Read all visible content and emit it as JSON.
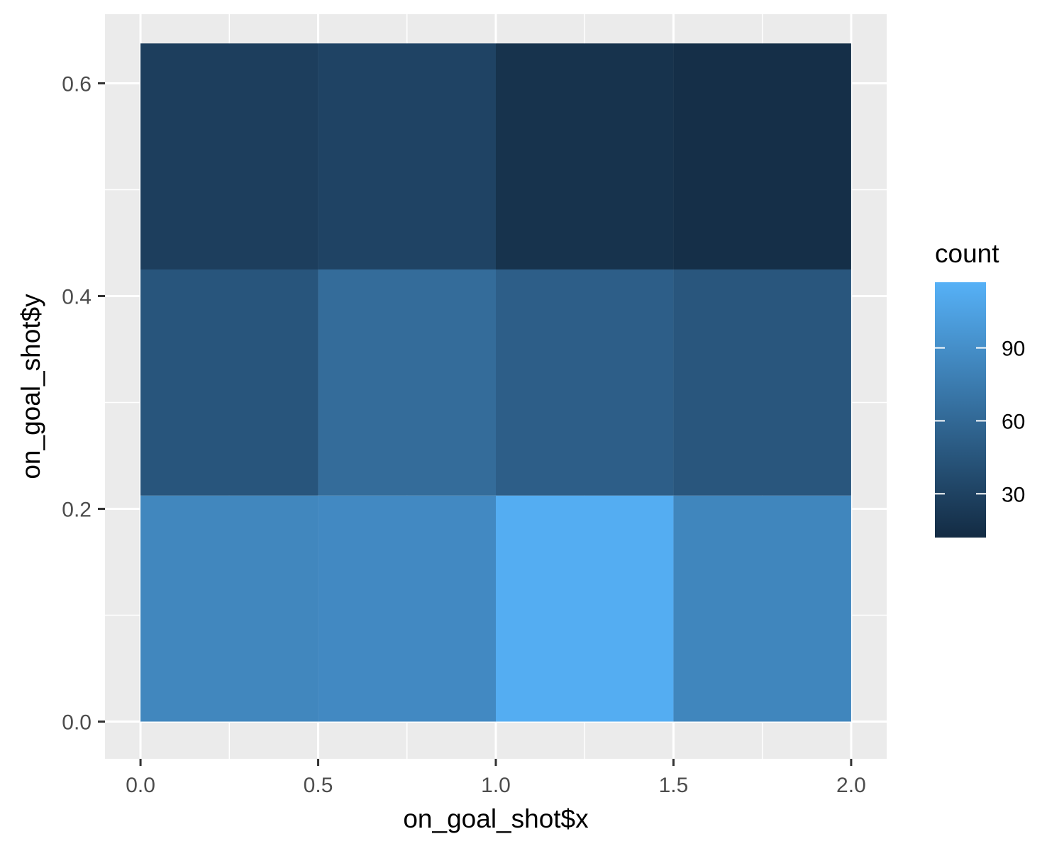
{
  "chart_data": {
    "type": "heatmap",
    "xlabel": "on_goal_shot$x",
    "ylabel": "on_goal_shot$y",
    "xlim": [
      -0.1,
      2.1
    ],
    "ylim": [
      -0.035,
      0.665
    ],
    "x_ticks": [
      "0.0",
      "0.5",
      "1.0",
      "1.5",
      "2.0"
    ],
    "x_tick_values": [
      0,
      0.5,
      1,
      1.5,
      2
    ],
    "y_ticks": [
      "0.0",
      "0.2",
      "0.4",
      "0.6"
    ],
    "y_tick_values": [
      0,
      0.2,
      0.4,
      0.6
    ],
    "x_bins": [
      [
        0,
        0.5
      ],
      [
        0.5,
        1.0
      ],
      [
        1.0,
        1.5
      ],
      [
        1.5,
        2.0
      ]
    ],
    "y_bins": [
      [
        0,
        0.2125
      ],
      [
        0.2125,
        0.425
      ],
      [
        0.425,
        0.6375
      ]
    ],
    "counts": [
      [
        84,
        86,
        114,
        83
      ],
      [
        45,
        63,
        52,
        46
      ],
      [
        27,
        31,
        18,
        15
      ]
    ],
    "grid": true,
    "legend": {
      "title": "count",
      "placement": "right",
      "min": 12,
      "max": 117,
      "breaks": [
        30,
        60,
        90
      ],
      "break_labels": [
        "30",
        "60",
        "90"
      ],
      "low_color": "#132B43",
      "high_color": "#56B1F7"
    },
    "panel_background": "#ebebeb",
    "grid_color": "#ffffff"
  }
}
